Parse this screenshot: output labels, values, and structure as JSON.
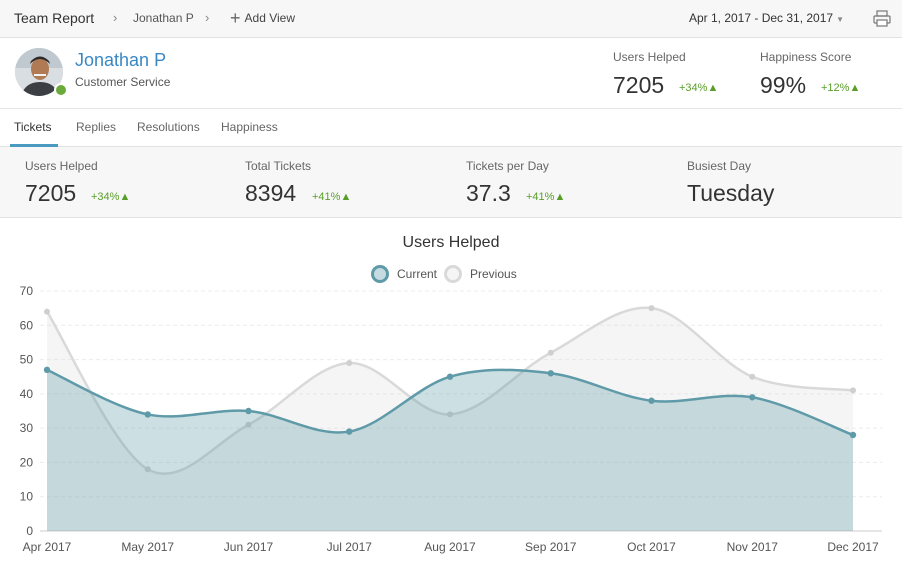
{
  "topbar": {
    "root": "Team Report",
    "separator": "›",
    "user": "Jonathan P",
    "add_view": "Add View",
    "date_range": "Apr 1, 2017 - Dec 31, 2017",
    "icons": {
      "add": "plus-icon",
      "date_caret": "chevron-down-icon",
      "print": "printer-icon"
    }
  },
  "profile": {
    "name": "Jonathan P",
    "role": "Customer Service",
    "status_color": "#6aaa3a",
    "stats": [
      {
        "label": "Users Helped",
        "value": "7205",
        "change": "+34%▲"
      },
      {
        "label": "Happiness Score",
        "value": "99%",
        "change": "+12%▲"
      }
    ]
  },
  "tabs": [
    "Tickets",
    "Replies",
    "Resolutions",
    "Happiness"
  ],
  "active_tab": "Tickets",
  "summary": [
    {
      "label": "Users Helped",
      "value": "7205",
      "change": "+34%▲"
    },
    {
      "label": "Total Tickets",
      "value": "8394",
      "change": "+41%▲"
    },
    {
      "label": "Tickets per Day",
      "value": "37.3",
      "change": "+41%▲"
    },
    {
      "label": "Busiest Day",
      "value": "Tuesday",
      "change": ""
    }
  ],
  "colors": {
    "accent": "#4a9ac2",
    "positive": "#5a9e2a",
    "current": "#5f9aa8",
    "previous": "#d6d6d6"
  },
  "chart_data": {
    "type": "area",
    "title": "Users Helped",
    "categories": [
      "Apr 2017",
      "May 2017",
      "Jun 2017",
      "Jul 2017",
      "Aug 2017",
      "Sep 2017",
      "Oct 2017",
      "Nov 2017",
      "Dec 2017"
    ],
    "series": [
      {
        "name": "Current",
        "values": [
          47,
          34,
          35,
          29,
          45,
          46,
          38,
          39,
          28
        ]
      },
      {
        "name": "Previous",
        "values": [
          64,
          18,
          31,
          49,
          34,
          52,
          65,
          45,
          41
        ]
      }
    ],
    "ylim": [
      0,
      70
    ],
    "yticks": [
      0,
      10,
      20,
      30,
      40,
      50,
      60,
      70
    ],
    "grid": true,
    "legend": "top-center"
  }
}
